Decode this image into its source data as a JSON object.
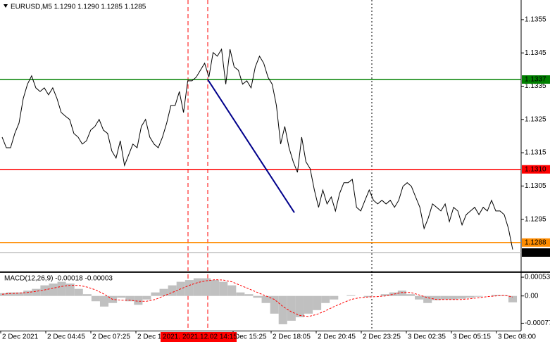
{
  "chart_data": [
    {
      "type": "line",
      "title": "EURUSD,M5  1.1290 1.1290 1.1285 1.1285",
      "color": "#000000",
      "values": [
        1.13197,
        1.13165,
        1.13165,
        1.13208,
        1.13239,
        1.13313,
        1.13356,
        1.13381,
        1.13345,
        1.13334,
        1.13345,
        1.13324,
        1.13345,
        1.13313,
        1.13271,
        1.1326,
        1.1325,
        1.13208,
        1.13197,
        1.13176,
        1.13186,
        1.13218,
        1.13229,
        1.1325,
        1.13218,
        1.13208,
        1.13155,
        1.13134,
        1.13186,
        1.13112,
        1.13144,
        1.13176,
        1.13165,
        1.13229,
        1.1325,
        1.13197,
        1.13176,
        1.13165,
        1.13197,
        1.13239,
        1.13292,
        1.13292,
        1.13334,
        1.13271,
        1.13366,
        1.13366,
        1.13377,
        1.13398,
        1.13419,
        1.13377,
        1.13451,
        1.1344,
        1.13461,
        1.13356,
        1.13461,
        1.13408,
        1.13398,
        1.13356,
        1.13366,
        1.13345,
        1.13408,
        1.1344,
        1.13419,
        1.13377,
        1.13356,
        1.13292,
        1.13176,
        1.13229,
        1.13165,
        1.13123,
        1.13091,
        1.13197,
        1.13123,
        1.13102,
        1.13038,
        1.12986,
        1.13038,
        1.12996,
        1.13017,
        1.12975,
        1.13028,
        1.1306,
        1.1306,
        1.1307,
        1.12986,
        1.12975,
        1.13007,
        1.13038,
        1.13007,
        1.12996,
        1.13007,
        1.12996,
        1.13007,
        1.12986,
        1.13007,
        1.13049,
        1.1306,
        1.13049,
        1.13017,
        1.12986,
        1.12922,
        1.12954,
        1.12996,
        1.12986,
        1.12975,
        1.12996,
        1.12943,
        1.12986,
        1.12975,
        1.12933,
        1.12964,
        1.12975,
        1.12986,
        1.12964,
        1.12986,
        1.12975,
        1.13007,
        1.12975,
        1.12975,
        1.12964,
        1.12922,
        1.12859
      ],
      "ylim": [
        1.12795,
        1.13609
      ],
      "yticks": [
        1.1295,
        1.1305,
        1.1315,
        1.1325,
        1.1335,
        1.1345,
        1.1355
      ],
      "levels": [
        {
          "value": 1.1337,
          "color": "#008000",
          "box": "#008000",
          "text": "#ffffff"
        },
        {
          "value": 1.131,
          "label": "1.1310",
          "color": "#ff0000",
          "box": "#ff0000",
          "text": "#ffffff"
        },
        {
          "value": 1.1288,
          "color": "#ff8c00",
          "box": "#ff8c00",
          "text": "#ffffff"
        },
        {
          "value": 1.1285,
          "color": "#c0c0c0",
          "box": "#000000",
          "text": "#ffffff"
        }
      ],
      "trend_line": {
        "start": 1.1337,
        "end": 1.1297,
        "color": "#00008b"
      },
      "xtick_labels": [
        "2 Dec 2021",
        "2 Dec 04:45",
        "2 Dec 07:25",
        "2 Dec 1",
        "Dec 15:25",
        "2 Dec 18:05",
        "2 Dec 20:45",
        "2 Dec 23:25",
        "3 Dec 02:35",
        "3 Dec 05:15",
        "3 Dec 08:00"
      ],
      "crosshair_labels": [
        "2021.",
        "2021.12.02 14:15"
      ]
    },
    {
      "type": "macd",
      "title": "MACD(12,26,9) -0.00018 -0.00003",
      "histogram": {
        "color": "#c0c0c0",
        "values": [
          8e-05,
          0.0001,
          0.0001,
          0.00015,
          0.0002,
          0.0003,
          0.00035,
          0.0004,
          0.00035,
          0.0002,
          5e-05,
          -0.00015,
          -0.0003,
          -0.0002,
          -5e-05,
          -0.00015,
          -0.00025,
          -0.0001,
          0.0001,
          0.0002,
          0.0003,
          0.0004,
          0.00045,
          0.0005,
          0.0005,
          0.00045,
          0.0004,
          0.0003,
          0.0001,
          5e-05,
          -5e-05,
          -0.0002,
          -0.0005,
          -0.0008,
          -0.0007,
          -0.0006,
          -0.0005,
          -0.0004,
          -0.0002,
          -0.0001,
          0,
          2e-05,
          0,
          -3e-05,
          0,
          5e-05,
          0.0001,
          0.00015,
          5e-05,
          -0.0001,
          -0.0002,
          -0.00012,
          -0.0001,
          -0.0001,
          -8e-05,
          -5e-05,
          -2e-05,
          0,
          3e-05,
          2e-05,
          -0.00018
        ]
      },
      "signal": {
        "color": "#ff0000",
        "values": [
          5e-05,
          7e-05,
          8e-05,
          0.0001,
          0.00013,
          0.00017,
          0.00022,
          0.00027,
          0.0003,
          0.0003,
          0.00025,
          0.00017,
          5e-05,
          -0.0001,
          -0.00012,
          -0.00012,
          -0.00015,
          -0.00015,
          -0.0001,
          0,
          0.0001,
          0.0002,
          0.0003,
          0.00038,
          0.00043,
          0.00046,
          0.00045,
          0.0004,
          0.0003,
          0.0002,
          0.0001,
          0,
          -0.0001,
          -0.0003,
          -0.00045,
          -0.00055,
          -0.00058,
          -0.00052,
          -0.00042,
          -0.0003,
          -0.0002,
          -0.0001,
          -5e-05,
          -3e-05,
          -2e-05,
          0,
          5e-05,
          0.0001,
          0.0001,
          3e-05,
          -5e-05,
          -0.0001,
          -0.0001,
          -0.0001,
          -0.0001,
          -8e-05,
          -5e-05,
          -2e-05,
          0,
          2e-05,
          -3e-05
        ]
      },
      "ylim": [
        -0.00098,
        0.00065
      ],
      "yticks": [
        0.00053,
        {
          "value": 0,
          "label": "0.00"
        },
        -0.00077
      ]
    }
  ]
}
